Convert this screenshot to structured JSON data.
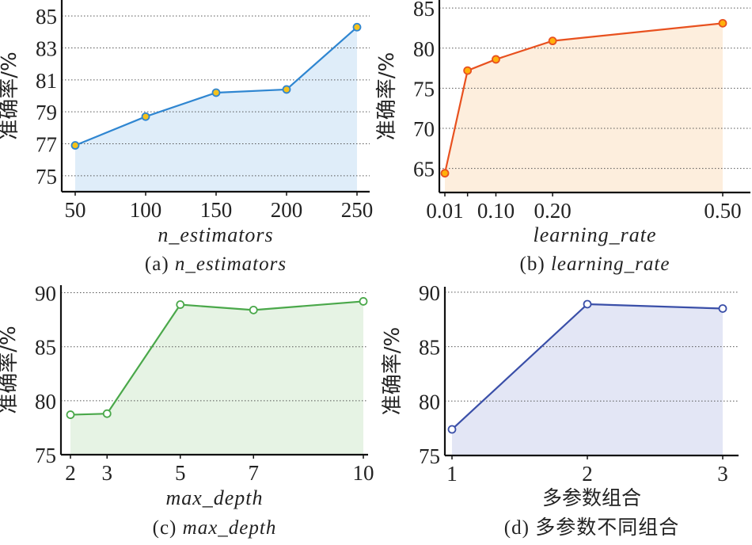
{
  "chart_data": [
    {
      "type": "area",
      "id": "a",
      "x": [
        50,
        100,
        150,
        200,
        250
      ],
      "series": [
        {
          "name": "准确率",
          "values": [
            76.9,
            78.7,
            80.2,
            80.4,
            84.3
          ]
        }
      ],
      "xticks": [
        50,
        100,
        150,
        200,
        250
      ],
      "xtick_labels": [
        "50",
        "100",
        "150",
        "200",
        "250"
      ],
      "yticks": [
        75,
        77,
        79,
        81,
        83,
        85
      ],
      "xlim": [
        50,
        250
      ],
      "ylim": [
        74,
        86
      ],
      "xlabel": "n_estimators",
      "ylabel": "准确率/%",
      "caption_prefix": "(a) ",
      "caption_main": "n_estimators",
      "grid": true,
      "colors": {
        "line": "#2f86d1",
        "fill": "#dfedf9",
        "marker_fill": "#f5c21b",
        "marker_stroke": "#2f86d1"
      }
    },
    {
      "type": "area",
      "id": "b",
      "x": [
        0.01,
        0.05,
        0.1,
        0.2,
        0.5
      ],
      "series": [
        {
          "name": "准确率",
          "values": [
            64.4,
            77.2,
            78.6,
            80.9,
            83.1
          ]
        }
      ],
      "xticks": [
        0.01,
        0.05,
        0.1,
        0.2,
        0.5
      ],
      "xtick_labels": [
        "0.01",
        "",
        "0.10",
        "0.20",
        "0.50"
      ],
      "yticks": [
        65,
        70,
        75,
        80,
        85
      ],
      "xlim": [
        0.01,
        0.5
      ],
      "ylim": [
        62,
        86
      ],
      "xlabel": "learning_rate",
      "ylabel": "准确率/%",
      "caption_prefix": "(b) ",
      "caption_main": "learning_rate",
      "grid": true,
      "colors": {
        "line": "#e8511f",
        "fill": "#fdeedd",
        "marker_fill": "#ffb10a",
        "marker_stroke": "#e8511f"
      }
    },
    {
      "type": "area",
      "id": "c",
      "x": [
        2,
        3,
        5,
        7,
        10
      ],
      "series": [
        {
          "name": "准确率",
          "values": [
            78.7,
            78.8,
            88.9,
            88.4,
            89.2
          ]
        }
      ],
      "xticks": [
        2,
        3,
        5,
        7,
        10
      ],
      "xtick_labels": [
        "2",
        "3",
        "5",
        "7",
        "10"
      ],
      "yticks": [
        75,
        80,
        85,
        90
      ],
      "xlim": [
        2,
        10
      ],
      "ylim": [
        75,
        90.7
      ],
      "xlabel": "max_depth",
      "ylabel": "准确率/%",
      "caption_prefix": "(c) ",
      "caption_main": "max_depth",
      "grid": true,
      "colors": {
        "line": "#4aa84a",
        "fill": "#e6f3e4",
        "marker_fill": "#ffffff",
        "marker_stroke": "#4aa84a"
      }
    },
    {
      "type": "area",
      "id": "d",
      "x": [
        1,
        2,
        3
      ],
      "series": [
        {
          "name": "准确率",
          "values": [
            77.4,
            88.9,
            88.5
          ]
        }
      ],
      "xticks": [
        1,
        2,
        3
      ],
      "xtick_labels": [
        "1",
        "2",
        "3"
      ],
      "yticks": [
        75,
        80,
        85,
        90
      ],
      "xlim": [
        1,
        3
      ],
      "ylim": [
        75,
        90.5
      ],
      "xlabel": "多参数组合",
      "ylabel": "准确率/%",
      "caption_prefix": "(d) ",
      "caption_main": "多参数不同组合",
      "grid": true,
      "colors": {
        "line": "#3a4fa8",
        "fill": "#e3e6f5",
        "marker_fill": "#ffffff",
        "marker_stroke": "#3a4fa8"
      }
    }
  ]
}
